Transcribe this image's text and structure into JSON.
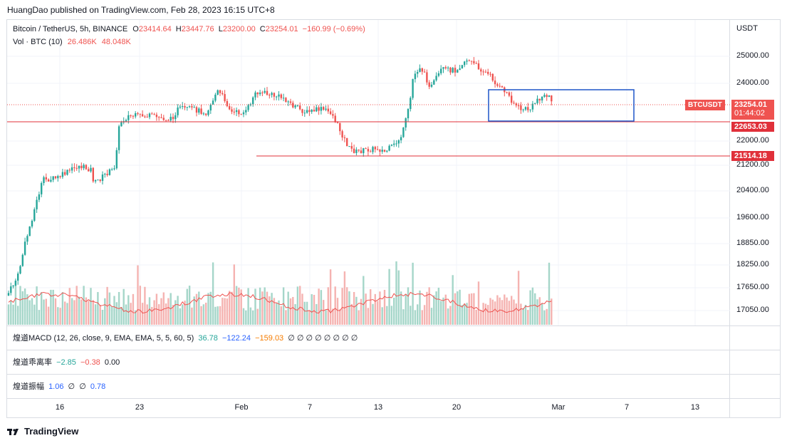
{
  "header": {
    "publisher_line": "HuangDao published on TradingView.com, Feb 28, 2023 16:15 UTC+8"
  },
  "legend": {
    "symbol": "Bitcoin / TetherUS, 5h, BINANCE",
    "o_label": "O",
    "o_value": "23414.64",
    "h_label": "H",
    "h_value": "23447.76",
    "l_label": "L",
    "l_value": "23200.00",
    "c_label": "C",
    "c_value": "23254.01",
    "change": "−160.99 (−0.69%)",
    "volume_label": "Vol · BTC (10)",
    "volume_value": "26.486K",
    "volume_ma": "48.048K"
  },
  "price_axis": {
    "currency": "USDT",
    "ticks": [
      "25000.00",
      "24000.00",
      "22000.00",
      "21200.00",
      "20400.00",
      "19600.00",
      "18850.00",
      "18250.00",
      "17650.00",
      "17050.00"
    ]
  },
  "price_labels": {
    "symbol_tag": "BTCUSDT",
    "last_price": "23254.01",
    "countdown": "01:44:02",
    "line_1": "22653.03",
    "line_2": "21514.18"
  },
  "indicators": {
    "macd": {
      "name": "煌道MACD (12, 26, close, 9, EMA, EMA, 5, 5, 60, 5)",
      "v1": "36.78",
      "v2": "−122.24",
      "v3": "−159.03",
      "rest": "∅ ∅ ∅ ∅ ∅ ∅ ∅ ∅"
    },
    "deviation": {
      "name": "煌道乖离率",
      "v1": "−2.85",
      "v2": "−0.38",
      "v3": "0.00"
    },
    "amplitude": {
      "name": "煌道振幅",
      "v1": "1.06",
      "v2": "∅",
      "v3": "∅",
      "v4": "0.78"
    }
  },
  "time_axis": {
    "labels": [
      "16",
      "23",
      "Feb",
      "7",
      "13",
      "20",
      "Mar",
      "7",
      "13"
    ]
  },
  "footer": {
    "brand": "TradingView"
  },
  "colors": {
    "up": "#26a69a",
    "down": "#ef5350",
    "box": "#1e55c8",
    "hline": "#e0303a"
  }
}
